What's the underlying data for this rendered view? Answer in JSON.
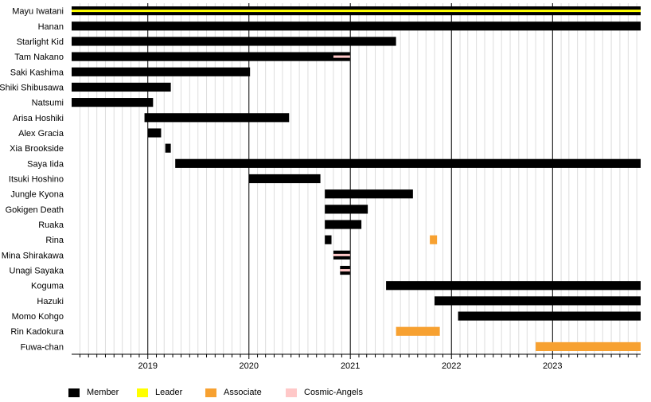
{
  "colors": {
    "member": "#000000",
    "leader": "#ffff00",
    "associate": "#f7a131",
    "cosmic_angels": "#ffc8c8",
    "major_grid": "#000000",
    "minor_grid": "#dddddd",
    "background": "#ffffff"
  },
  "legend": [
    {
      "key": "member",
      "label": "Member"
    },
    {
      "key": "leader",
      "label": "Leader"
    },
    {
      "key": "associate",
      "label": "Associate"
    },
    {
      "key": "cosmic_angels",
      "label": "Cosmic-Angels"
    }
  ],
  "chart_data": {
    "type": "timeline",
    "title": "",
    "xlabel": "",
    "ylabel": "",
    "x_range": [
      "2018-04-01",
      "2023-11-15"
    ],
    "x_ticks": [
      "2019",
      "2020",
      "2021",
      "2022",
      "2023"
    ],
    "minor_grid": "monthly",
    "legend_placement": "bottom",
    "rows": [
      {
        "name": "Mayu Iwatani",
        "bars": [
          {
            "start": "2018-04-01",
            "end": "2023-11-15",
            "type": "member"
          },
          {
            "start": "2018-04-01",
            "end": "2023-11-15",
            "type": "leader",
            "stripe": true
          }
        ]
      },
      {
        "name": "Hanan",
        "bars": [
          {
            "start": "2018-04-01",
            "end": "2023-11-15",
            "type": "member"
          }
        ]
      },
      {
        "name": "Starlight Kid",
        "bars": [
          {
            "start": "2018-04-01",
            "end": "2021-06-15",
            "type": "member"
          }
        ]
      },
      {
        "name": "Tam Nakano",
        "bars": [
          {
            "start": "2018-04-01",
            "end": "2020-12-31",
            "type": "member"
          },
          {
            "start": "2020-11-01",
            "end": "2020-12-31",
            "type": "cosmic_angels",
            "stripe": true
          }
        ]
      },
      {
        "name": "Saki Kashima",
        "bars": [
          {
            "start": "2018-04-01",
            "end": "2020-01-05",
            "type": "member"
          }
        ]
      },
      {
        "name": "Shiki Shibusawa",
        "bars": [
          {
            "start": "2018-04-01",
            "end": "2019-03-25",
            "type": "member"
          }
        ]
      },
      {
        "name": "Natsumi",
        "bars": [
          {
            "start": "2018-04-01",
            "end": "2019-01-20",
            "type": "member"
          }
        ]
      },
      {
        "name": "Arisa Hoshiki",
        "bars": [
          {
            "start": "2018-12-20",
            "end": "2020-05-25",
            "type": "member"
          }
        ]
      },
      {
        "name": "Alex Gracia",
        "bars": [
          {
            "start": "2019-01-01",
            "end": "2019-02-18",
            "type": "member"
          }
        ]
      },
      {
        "name": "Xia Brookside",
        "bars": [
          {
            "start": "2019-03-05",
            "end": "2019-03-25",
            "type": "member"
          }
        ]
      },
      {
        "name": "Saya Iida",
        "bars": [
          {
            "start": "2019-04-10",
            "end": "2023-11-15",
            "type": "member"
          }
        ]
      },
      {
        "name": "Itsuki Hoshino",
        "bars": [
          {
            "start": "2020-01-01",
            "end": "2020-09-15",
            "type": "member"
          }
        ]
      },
      {
        "name": "Jungle Kyona",
        "bars": [
          {
            "start": "2020-10-01",
            "end": "2021-08-15",
            "type": "member"
          }
        ]
      },
      {
        "name": "Gokigen Death",
        "bars": [
          {
            "start": "2020-10-01",
            "end": "2021-03-05",
            "type": "member"
          }
        ]
      },
      {
        "name": "Ruaka",
        "bars": [
          {
            "start": "2020-10-01",
            "end": "2021-02-10",
            "type": "member"
          }
        ]
      },
      {
        "name": "Rina",
        "bars": [
          {
            "start": "2020-10-01",
            "end": "2020-10-25",
            "type": "member"
          },
          {
            "start": "2021-10-15",
            "end": "2021-11-10",
            "type": "associate"
          }
        ]
      },
      {
        "name": "Mina Shirakawa",
        "bars": [
          {
            "start": "2020-11-01",
            "end": "2020-12-31",
            "type": "member"
          },
          {
            "start": "2020-11-01",
            "end": "2020-12-31",
            "type": "cosmic_angels",
            "stripe": true
          }
        ]
      },
      {
        "name": "Unagi Sayaka",
        "bars": [
          {
            "start": "2020-11-25",
            "end": "2020-12-31",
            "type": "member"
          },
          {
            "start": "2020-11-25",
            "end": "2020-12-31",
            "type": "cosmic_angels",
            "stripe": true
          }
        ]
      },
      {
        "name": "Koguma",
        "bars": [
          {
            "start": "2021-05-10",
            "end": "2023-11-15",
            "type": "member"
          }
        ]
      },
      {
        "name": "Hazuki",
        "bars": [
          {
            "start": "2021-11-01",
            "end": "2023-11-15",
            "type": "member"
          }
        ]
      },
      {
        "name": "Momo Kohgo",
        "bars": [
          {
            "start": "2022-01-25",
            "end": "2023-11-15",
            "type": "member"
          }
        ]
      },
      {
        "name": "Rin Kadokura",
        "bars": [
          {
            "start": "2021-06-15",
            "end": "2021-11-20",
            "type": "associate"
          }
        ]
      },
      {
        "name": "Fuwa-chan",
        "bars": [
          {
            "start": "2022-11-01",
            "end": "2023-11-15",
            "type": "associate"
          }
        ]
      }
    ]
  }
}
